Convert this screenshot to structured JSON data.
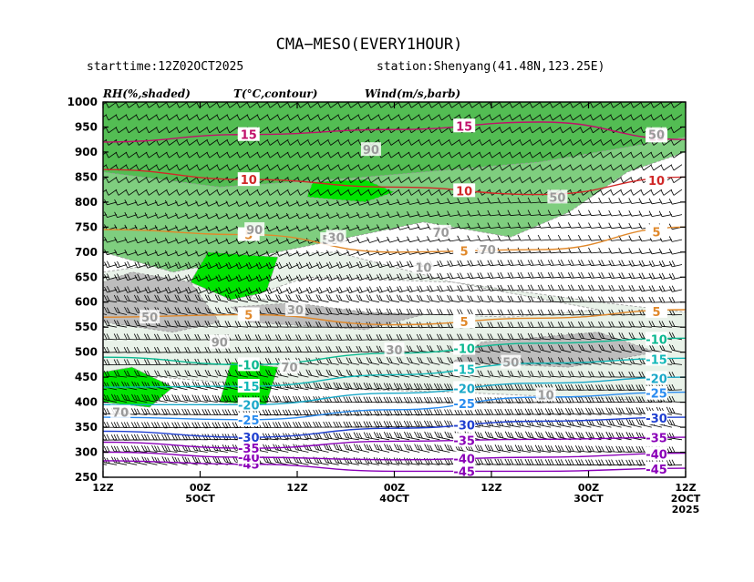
{
  "header": {
    "title": "CMA−MESO(EVERY1HOUR)",
    "starttime": "starttime:12Z02OCT2025",
    "station": "station:Shenyang(41.48N,123.25E)"
  },
  "variables": {
    "rh": "RH(%,shaded)",
    "temp": "T(°C,contour)",
    "wind": "Wind(m/s,barb)"
  },
  "colors": {
    "rh_light": "#e9f2e9",
    "rh_grey": "#bdbdbd",
    "rh_midgreen": "#7fce7f",
    "rh_green": "#53bd53",
    "rh_bright": "#00e400",
    "barb": "#000000"
  },
  "chart_data": {
    "type": "heatmap",
    "y_axis": {
      "label": "",
      "scale": "pressure (hPa), decreasing upward",
      "ylim": [
        1000,
        250
      ],
      "ticks": [
        "250",
        "300",
        "350",
        "400",
        "450",
        "500",
        "550",
        "600",
        "650",
        "700",
        "750",
        "800",
        "850",
        "900",
        "950",
        "1000"
      ]
    },
    "x_axis": {
      "label": "",
      "direction": "time increases to the left",
      "ticks": [
        {
          "label": "12Z",
          "sub": "",
          "year": ""
        },
        {
          "label": "00Z",
          "sub": "5OCT",
          "year": ""
        },
        {
          "label": "12Z",
          "sub": "",
          "year": ""
        },
        {
          "label": "00Z",
          "sub": "4OCT",
          "year": ""
        },
        {
          "label": "12Z",
          "sub": "",
          "year": ""
        },
        {
          "label": "00Z",
          "sub": "3OCT",
          "year": ""
        },
        {
          "label": "12Z",
          "sub": "2OCT",
          "year": "2025"
        }
      ]
    },
    "temperature_contours": [
      {
        "value": -45,
        "color": "#8a00b8",
        "label": "-45",
        "points": [
          [
            0,
            283
          ],
          [
            0.25,
            276
          ],
          [
            0.5,
            262
          ],
          [
            0.75,
            262
          ],
          [
            1,
            268
          ]
        ]
      },
      {
        "value": -40,
        "color": "#8a00b8",
        "label": "-40",
        "points": [
          [
            0,
            300
          ],
          [
            0.25,
            290
          ],
          [
            0.5,
            285
          ],
          [
            0.75,
            290
          ],
          [
            1,
            298
          ]
        ]
      },
      {
        "value": -35,
        "color": "#8a00b8",
        "label": "-35",
        "points": [
          [
            0,
            320
          ],
          [
            0.25,
            308
          ],
          [
            0.5,
            322
          ],
          [
            0.75,
            326
          ],
          [
            1,
            330
          ]
        ]
      },
      {
        "value": -30,
        "color": "#1f3fd0",
        "label": "-30",
        "points": [
          [
            0,
            342
          ],
          [
            0.25,
            330
          ],
          [
            0.5,
            348
          ],
          [
            0.75,
            362
          ],
          [
            1,
            370
          ]
        ]
      },
      {
        "value": -25,
        "color": "#2a8cf0",
        "label": "-25",
        "points": [
          [
            0,
            370
          ],
          [
            0.25,
            365
          ],
          [
            0.5,
            385
          ],
          [
            0.75,
            410
          ],
          [
            1,
            420
          ]
        ]
      },
      {
        "value": -20,
        "color": "#1aa8c8",
        "label": "-20",
        "points": [
          [
            0,
            395
          ],
          [
            0.25,
            395
          ],
          [
            0.5,
            418
          ],
          [
            0.75,
            438
          ],
          [
            1,
            450
          ]
        ]
      },
      {
        "value": -15,
        "color": "#12b8b8",
        "label": "-15",
        "points": [
          [
            0,
            430
          ],
          [
            0.25,
            432
          ],
          [
            0.5,
            455
          ],
          [
            0.75,
            478
          ],
          [
            1,
            488
          ]
        ]
      },
      {
        "value": -10,
        "color": "#0ab890",
        "label": "-10",
        "points": [
          [
            0,
            490
          ],
          [
            0.25,
            475
          ],
          [
            0.5,
            498
          ],
          [
            0.75,
            518
          ],
          [
            1,
            528
          ]
        ]
      },
      {
        "value": 5,
        "color": "#e0882a",
        "label": "5",
        "points": [
          [
            0,
            570
          ],
          [
            0.25,
            575
          ],
          [
            0.5,
            555
          ],
          [
            0.75,
            568
          ],
          [
            1,
            585
          ]
        ]
      },
      {
        "value": 5,
        "color": "#e0882a",
        "label": "5",
        "points": [
          [
            0,
            745
          ],
          [
            0.25,
            735
          ],
          [
            0.5,
            700
          ],
          [
            0.75,
            705
          ],
          [
            1,
            750
          ]
        ]
      },
      {
        "value": 10,
        "color": "#d02828",
        "label": "10",
        "points": [
          [
            0,
            865
          ],
          [
            0.25,
            845
          ],
          [
            0.5,
            830
          ],
          [
            0.75,
            815
          ],
          [
            1,
            850
          ]
        ]
      },
      {
        "value": 15,
        "color": "#c0106a",
        "label": "15",
        "points": [
          [
            0,
            920
          ],
          [
            0.25,
            935
          ],
          [
            0.5,
            945
          ],
          [
            0.75,
            960
          ],
          [
            1,
            925
          ]
        ]
      }
    ],
    "rh_labels": [
      "70",
      "90",
      "50",
      "30",
      "10",
      "90",
      "50",
      "30",
      "70",
      "50",
      "70",
      "90",
      "70",
      "50",
      "30",
      "10",
      "50"
    ]
  }
}
